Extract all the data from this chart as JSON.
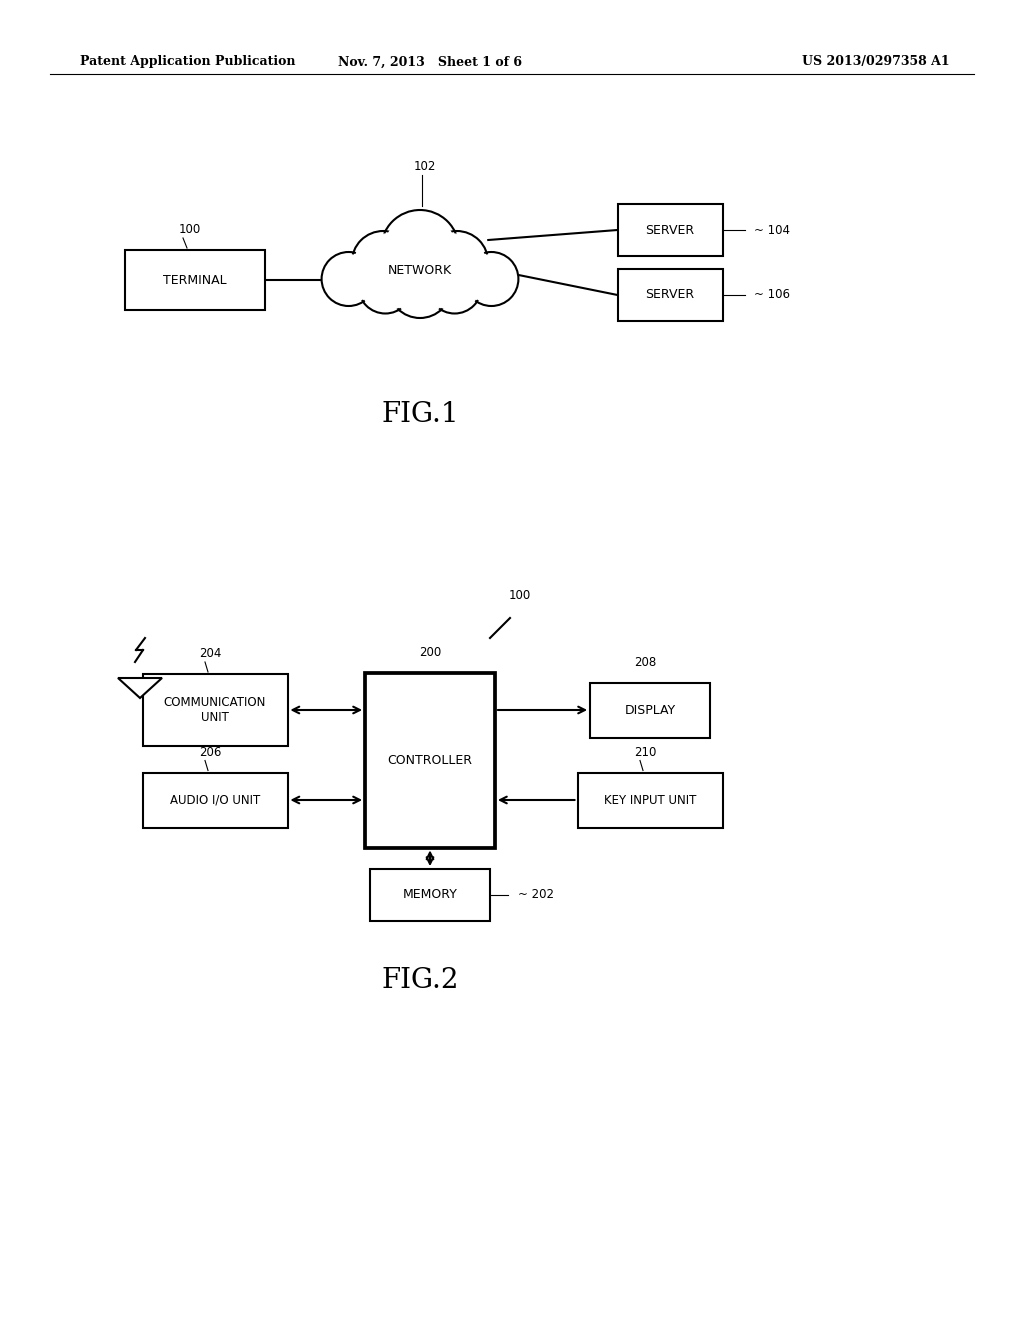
{
  "bg_color": "#ffffff",
  "header_left": "Patent Application Publication",
  "header_mid": "Nov. 7, 2013   Sheet 1 of 6",
  "header_right": "US 2013/0297358 A1",
  "fig1_label": "FIG.1",
  "fig2_label": "FIG.2"
}
